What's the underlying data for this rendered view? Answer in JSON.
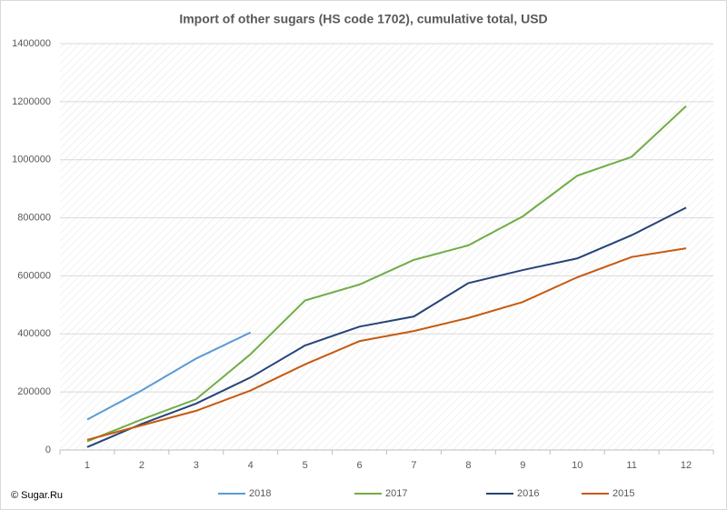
{
  "chart_data": {
    "type": "line",
    "title": "Import of other sugars (HS code 1702), cumulative total, USD",
    "copyright": "© Sugar.Ru",
    "categories": [
      "1",
      "2",
      "3",
      "4",
      "5",
      "6",
      "7",
      "8",
      "9",
      "10",
      "11",
      "12"
    ],
    "series": [
      {
        "name": "2018",
        "color": "#5b9bd5",
        "values": [
          105000,
          205000,
          315000,
          405000,
          null,
          null,
          null,
          null,
          null,
          null,
          null,
          null
        ]
      },
      {
        "name": "2017",
        "color": "#70ad47",
        "values": [
          30000,
          105000,
          175000,
          330000,
          515000,
          570000,
          655000,
          705000,
          805000,
          945000,
          1010000,
          1185000
        ]
      },
      {
        "name": "2016",
        "color": "#264478",
        "values": [
          10000,
          90000,
          160000,
          250000,
          360000,
          425000,
          460000,
          575000,
          620000,
          660000,
          740000,
          835000
        ]
      },
      {
        "name": "2015",
        "color": "#c55a11",
        "values": [
          35000,
          85000,
          135000,
          205000,
          295000,
          375000,
          410000,
          455000,
          510000,
          595000,
          665000,
          695000
        ]
      }
    ],
    "ylim": [
      0,
      1400000
    ],
    "yticks": [
      0,
      200000,
      400000,
      600000,
      800000,
      1000000,
      1200000,
      1400000
    ],
    "grid": true,
    "legend": "bottom"
  }
}
